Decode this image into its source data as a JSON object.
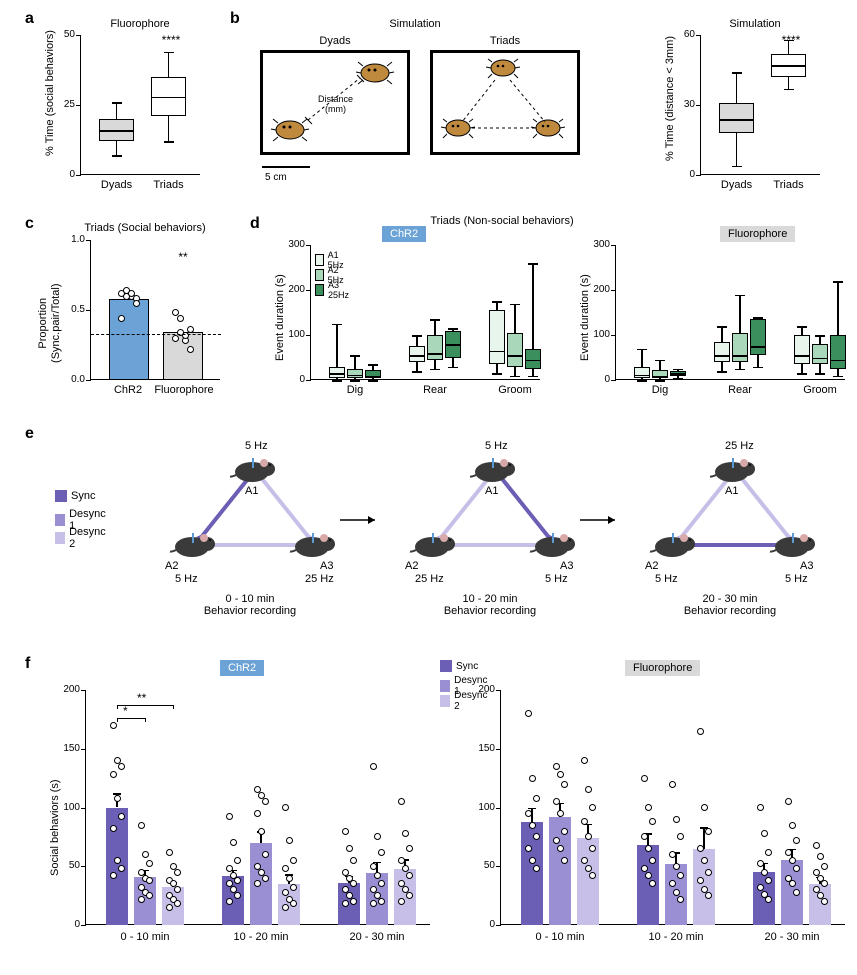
{
  "colors": {
    "bg": "#ffffff",
    "text": "#000000",
    "gray_fill": "#d9d9d9",
    "blue_chr2": "#6ba3d6",
    "blue_badge_bg": "#6ba3d6",
    "green_dark": "#3a8f5c",
    "green_mid": "#a8d8b9",
    "green_light": "#e8f5ec",
    "purple_sync": "#6b5eb5",
    "purple_desync1": "#9b8fd4",
    "purple_desync2": "#c7bfe8",
    "bee_color": "#c08a3e"
  },
  "panel_a": {
    "label": "a",
    "title": "Fluorophore",
    "ylabel": "% Time (social behaviors)",
    "yticks": [
      0,
      25,
      50
    ],
    "categories": [
      "Dyads",
      "Triads"
    ],
    "sig": "****",
    "dyads": {
      "q1": 12,
      "median": 16,
      "q3": 20,
      "wlow": 7,
      "whigh": 26,
      "fill": "#d9d9d9"
    },
    "triads": {
      "q1": 21,
      "median": 28,
      "q3": 35,
      "wlow": 12,
      "whigh": 44,
      "fill": "#ffffff"
    }
  },
  "panel_b": {
    "label": "b",
    "sim_title": "Simulation",
    "dyads_label": "Dyads",
    "triads_label": "Triads",
    "distance_label": "Distance\n(mm)",
    "scale_label": "5 cm",
    "chart_title": "Simulation",
    "ylabel": "% Time (distance < 3mm)",
    "yticks": [
      0,
      30,
      60
    ],
    "categories": [
      "Dyads",
      "Triads"
    ],
    "sig": "****",
    "dyads": {
      "q1": 18,
      "median": 24,
      "q3": 31,
      "wlow": 4,
      "whigh": 44,
      "fill": "#d9d9d9"
    },
    "triads": {
      "q1": 42,
      "median": 47,
      "q3": 52,
      "wlow": 37,
      "whigh": 58,
      "fill": "#ffffff"
    }
  },
  "panel_c": {
    "label": "c",
    "title": "Triads (Social behaviors)",
    "ylabel": "Proportion\n(Sync.pair/Total)",
    "yticks": [
      0.0,
      0.5,
      1.0
    ],
    "categories": [
      "ChR2",
      "Fluorophore"
    ],
    "sig": "**",
    "chance": 0.33,
    "chr2": {
      "mean": 0.58,
      "fill": "#6ba3d6",
      "points": [
        0.62,
        0.64,
        0.6,
        0.58,
        0.44,
        0.6,
        0.62,
        0.55
      ]
    },
    "fluor": {
      "mean": 0.34,
      "fill": "#d9d9d9",
      "points": [
        0.48,
        0.44,
        0.28,
        0.22,
        0.3,
        0.34,
        0.32,
        0.36
      ]
    }
  },
  "panel_d": {
    "label": "d",
    "title": "Triads (Non-social behaviors)",
    "chr2_badge": "ChR2",
    "fluor_badge": "Fluorophore",
    "ylabel": "Event duration (s)",
    "yticks": [
      0,
      100,
      200,
      300
    ],
    "categories": [
      "Dig",
      "Rear",
      "Groom"
    ],
    "legend": {
      "a1": "A1 5Hz",
      "a2": "A2 5Hz",
      "a3": "A3 25Hz"
    },
    "colors": {
      "a1": "#e8f5ec",
      "a2": "#a8d8b9",
      "a3": "#3a8f5c"
    },
    "chr2": {
      "dig": {
        "a1": {
          "q1": 5,
          "m": 15,
          "q3": 30,
          "lo": 0,
          "hi": 125
        },
        "a2": {
          "q1": 5,
          "m": 12,
          "q3": 25,
          "lo": 0,
          "hi": 55
        },
        "a3": {
          "q1": 5,
          "m": 10,
          "q3": 22,
          "lo": 0,
          "hi": 35
        }
      },
      "rear": {
        "a1": {
          "q1": 40,
          "m": 55,
          "q3": 75,
          "lo": 20,
          "hi": 100
        },
        "a2": {
          "q1": 45,
          "m": 60,
          "q3": 100,
          "lo": 25,
          "hi": 135
        },
        "a3": {
          "q1": 50,
          "m": 80,
          "q3": 110,
          "lo": 30,
          "hi": 115
        }
      },
      "groom": {
        "a1": {
          "q1": 35,
          "m": 65,
          "q3": 155,
          "lo": 15,
          "hi": 175
        },
        "a2": {
          "q1": 30,
          "m": 55,
          "q3": 105,
          "lo": 10,
          "hi": 170
        },
        "a3": {
          "q1": 25,
          "m": 45,
          "q3": 70,
          "lo": 10,
          "hi": 260
        }
      }
    },
    "fluor": {
      "dig": {
        "a1": {
          "q1": 5,
          "m": 12,
          "q3": 30,
          "lo": 0,
          "hi": 70
        },
        "a2": {
          "q1": 5,
          "m": 10,
          "q3": 22,
          "lo": 0,
          "hi": 45
        },
        "a3": {
          "q1": 8,
          "m": 15,
          "q3": 20,
          "lo": 5,
          "hi": 25
        }
      },
      "rear": {
        "a1": {
          "q1": 40,
          "m": 55,
          "q3": 85,
          "lo": 20,
          "hi": 120
        },
        "a2": {
          "q1": 40,
          "m": 55,
          "q3": 105,
          "lo": 25,
          "hi": 190
        },
        "a3": {
          "q1": 55,
          "m": 75,
          "q3": 135,
          "lo": 30,
          "hi": 140
        }
      },
      "groom": {
        "a1": {
          "q1": 35,
          "m": 55,
          "q3": 100,
          "lo": 15,
          "hi": 120
        },
        "a2": {
          "q1": 35,
          "m": 50,
          "q3": 80,
          "lo": 15,
          "hi": 100
        },
        "a3": {
          "q1": 25,
          "m": 45,
          "q3": 100,
          "lo": 10,
          "hi": 220
        }
      }
    }
  },
  "panel_e": {
    "label": "e",
    "legend": {
      "sync": "Sync",
      "desync1": "Desync 1",
      "desync2": "Desync 2"
    },
    "colors": {
      "sync": "#6b5eb5",
      "desync1": "#9b8fd4",
      "desync2": "#c7bfe8"
    },
    "epochs": [
      {
        "time": "0 - 10 min",
        "sub": "Behavior recording",
        "a1": "5 Hz",
        "a2": "5 Hz",
        "a3": "25 Hz",
        "sync_edge": "a1-a2"
      },
      {
        "time": "10 - 20 min",
        "sub": "Behavior recording",
        "a1": "5 Hz",
        "a2": "25 Hz",
        "a3": "5 Hz",
        "sync_edge": "a1-a3"
      },
      {
        "time": "20 - 30 min",
        "sub": "Behavior recording",
        "a1": "25 Hz",
        "a2": "5 Hz",
        "a3": "5 Hz",
        "sync_edge": "a2-a3"
      }
    ],
    "labels": {
      "a1": "A1",
      "a2": "A2",
      "a3": "A3"
    }
  },
  "panel_f": {
    "label": "f",
    "chr2_badge": "ChR2",
    "fluor_badge": "Fluorophore",
    "ylabel": "Social behaviors (s)",
    "yticks": [
      0,
      50,
      100,
      150,
      200
    ],
    "categories": [
      "0 - 10 min",
      "10 - 20 min",
      "20 - 30 min"
    ],
    "legend": {
      "sync": "Sync",
      "desync1": "Desync 1",
      "desync2": "Desync 2"
    },
    "colors": {
      "sync": "#6b5eb5",
      "desync1": "#9b8fd4",
      "desync2": "#c7bfe8"
    },
    "sig1": "*",
    "sig2": "**",
    "chr2": {
      "e1": {
        "sync": {
          "mean": 100,
          "sem": 12,
          "pts": [
            170,
            140,
            135,
            128,
            108,
            92,
            82,
            55,
            48,
            42
          ]
        },
        "desync1": {
          "mean": 41,
          "sem": 6,
          "pts": [
            85,
            60,
            52,
            45,
            40,
            38,
            32,
            28,
            25,
            22
          ]
        },
        "desync2": {
          "mean": 32,
          "sem": 5,
          "pts": [
            62,
            50,
            45,
            38,
            35,
            30,
            25,
            22,
            18,
            15
          ]
        }
      },
      "e2": {
        "sync": {
          "mean": 42,
          "sem": 5,
          "pts": [
            92,
            70,
            55,
            48,
            42,
            38,
            35,
            30,
            25,
            20
          ]
        },
        "desync1": {
          "mean": 70,
          "sem": 10,
          "pts": [
            115,
            110,
            105,
            95,
            80,
            60,
            50,
            45,
            40,
            35
          ]
        },
        "desync2": {
          "mean": 35,
          "sem": 8,
          "pts": [
            100,
            72,
            55,
            48,
            40,
            32,
            28,
            22,
            18,
            15
          ]
        }
      },
      "e3": {
        "sync": {
          "mean": 36,
          "sem": 6,
          "pts": [
            80,
            65,
            55,
            45,
            40,
            35,
            30,
            25,
            20,
            18
          ]
        },
        "desync1": {
          "mean": 44,
          "sem": 10,
          "pts": [
            135,
            75,
            62,
            50,
            42,
            35,
            30,
            25,
            20,
            18
          ]
        },
        "desync2": {
          "mean": 48,
          "sem": 8,
          "pts": [
            105,
            78,
            65,
            55,
            48,
            42,
            35,
            30,
            25,
            20
          ]
        }
      }
    },
    "fluor": {
      "e1": {
        "sync": {
          "mean": 88,
          "sem": 12,
          "pts": [
            180,
            125,
            108,
            95,
            85,
            75,
            65,
            55,
            48
          ]
        },
        "desync1": {
          "mean": 92,
          "sem": 12,
          "pts": [
            135,
            128,
            120,
            105,
            95,
            80,
            72,
            65,
            55
          ]
        },
        "desync2": {
          "mean": 74,
          "sem": 12,
          "pts": [
            140,
            115,
            100,
            88,
            75,
            65,
            55,
            48,
            42
          ]
        }
      },
      "e2": {
        "sync": {
          "mean": 68,
          "sem": 10,
          "pts": [
            125,
            100,
            88,
            75,
            65,
            55,
            48,
            42,
            35
          ]
        },
        "desync1": {
          "mean": 52,
          "sem": 10,
          "pts": [
            120,
            90,
            75,
            60,
            50,
            42,
            35,
            28,
            22
          ]
        },
        "desync2": {
          "mean": 65,
          "sem": 18,
          "pts": [
            165,
            100,
            80,
            65,
            55,
            45,
            38,
            30,
            25
          ]
        }
      },
      "e3": {
        "sync": {
          "mean": 45,
          "sem": 8,
          "pts": [
            100,
            78,
            62,
            52,
            45,
            38,
            32,
            26,
            22
          ]
        },
        "desync1": {
          "mean": 55,
          "sem": 10,
          "pts": [
            105,
            85,
            72,
            62,
            55,
            48,
            40,
            35,
            28
          ]
        },
        "desync2": {
          "mean": 35,
          "sem": 6,
          "pts": [
            68,
            58,
            50,
            45,
            40,
            35,
            30,
            25,
            20
          ]
        }
      }
    }
  }
}
